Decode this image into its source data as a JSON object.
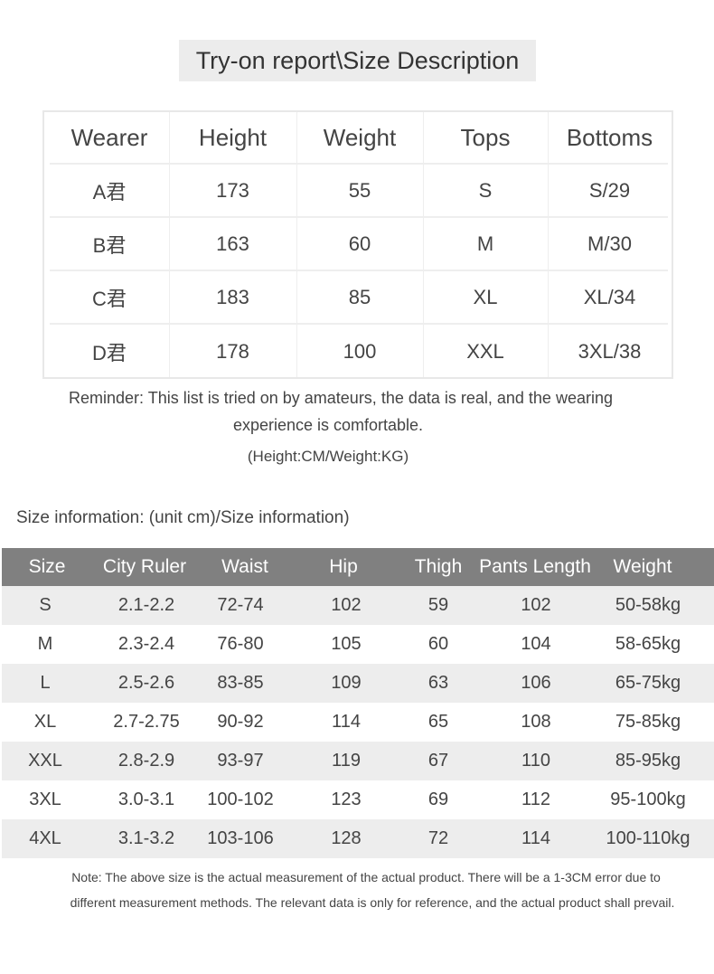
{
  "title": "Try-on report\\Size Description",
  "wearer_table": {
    "headers": [
      "Wearer",
      "Height",
      "Weight",
      "Tops",
      "Bottoms"
    ],
    "rows": [
      [
        "A君",
        "173",
        "55",
        "S",
        "S/29"
      ],
      [
        "B君",
        "163",
        "60",
        "M",
        "M/30"
      ],
      [
        "C君",
        "183",
        "85",
        "XL",
        "XL/34"
      ],
      [
        "D君",
        "178",
        "100",
        "XXL",
        "3XL/38"
      ]
    ]
  },
  "reminder": {
    "line1": "Reminder: This list is tried on by amateurs, the data is real, and the wearing",
    "line2": "experience is comfortable.",
    "units": "(Height:CM/Weight:KG)"
  },
  "size_info_label": "Size information: (unit cm)/Size information)",
  "size_table": {
    "header_color": "#808080",
    "headers": [
      "Size",
      "City Ruler",
      "Waist",
      "Hip",
      "Thigh",
      "Pants Length",
      "Weight"
    ],
    "rows": [
      [
        "S",
        "2.1-2.2",
        "72-74",
        "102",
        "59",
        "102",
        "50-58kg"
      ],
      [
        "M",
        "2.3-2.4",
        "76-80",
        "105",
        "60",
        "104",
        "58-65kg"
      ],
      [
        "L",
        "2.5-2.6",
        "83-85",
        "109",
        "63",
        "106",
        "65-75kg"
      ],
      [
        "XL",
        "2.7-2.75",
        "90-92",
        "114",
        "65",
        "108",
        "75-85kg"
      ],
      [
        "XXL",
        "2.8-2.9",
        "93-97",
        "119",
        "67",
        "110",
        "85-95kg"
      ],
      [
        "3XL",
        "3.0-3.1",
        "100-102",
        "123",
        "69",
        "112",
        "95-100kg"
      ],
      [
        "4XL",
        "3.1-3.2",
        "103-106",
        "128",
        "72",
        "114",
        "100-110kg"
      ]
    ]
  },
  "footnote": {
    "line1": "Note: The above size is the actual measurement of the actual product. There will be a 1-3CM error due to",
    "line2": "different measurement methods. The relevant data is only for reference, and the actual product shall prevail."
  }
}
